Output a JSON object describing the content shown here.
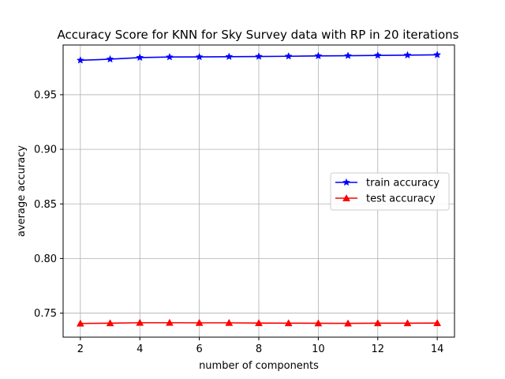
{
  "chart_data": {
    "type": "line",
    "title": "Accuracy Score for KNN for Sky Survey data with RP in 20 iterations",
    "xlabel": "number of components",
    "ylabel": "average accuracy",
    "x": [
      2,
      3,
      4,
      5,
      6,
      7,
      8,
      9,
      10,
      11,
      12,
      13,
      14
    ],
    "xlim": [
      1.42,
      14.58
    ],
    "ylim": [
      0.728,
      0.9955
    ],
    "xticks": [
      2,
      4,
      6,
      8,
      10,
      12,
      14
    ],
    "yticks": [
      0.75,
      0.8,
      0.85,
      0.9,
      0.95
    ],
    "ytick_labels": [
      "0.75",
      "0.80",
      "0.85",
      "0.90",
      "0.95"
    ],
    "grid": true,
    "legend_position": "center-right",
    "series": [
      {
        "name": "train accuracy",
        "color": "#0000ff",
        "marker": "star",
        "values": [
          0.9815,
          0.9825,
          0.984,
          0.9845,
          0.9846,
          0.9848,
          0.985,
          0.9852,
          0.9855,
          0.9857,
          0.986,
          0.9862,
          0.9865
        ]
      },
      {
        "name": "test accuracy",
        "color": "#ff0000",
        "marker": "triangle",
        "values": [
          0.7405,
          0.7408,
          0.7412,
          0.7412,
          0.7411,
          0.7411,
          0.7409,
          0.7408,
          0.7407,
          0.7406,
          0.7408,
          0.7408,
          0.7409
        ]
      }
    ]
  }
}
